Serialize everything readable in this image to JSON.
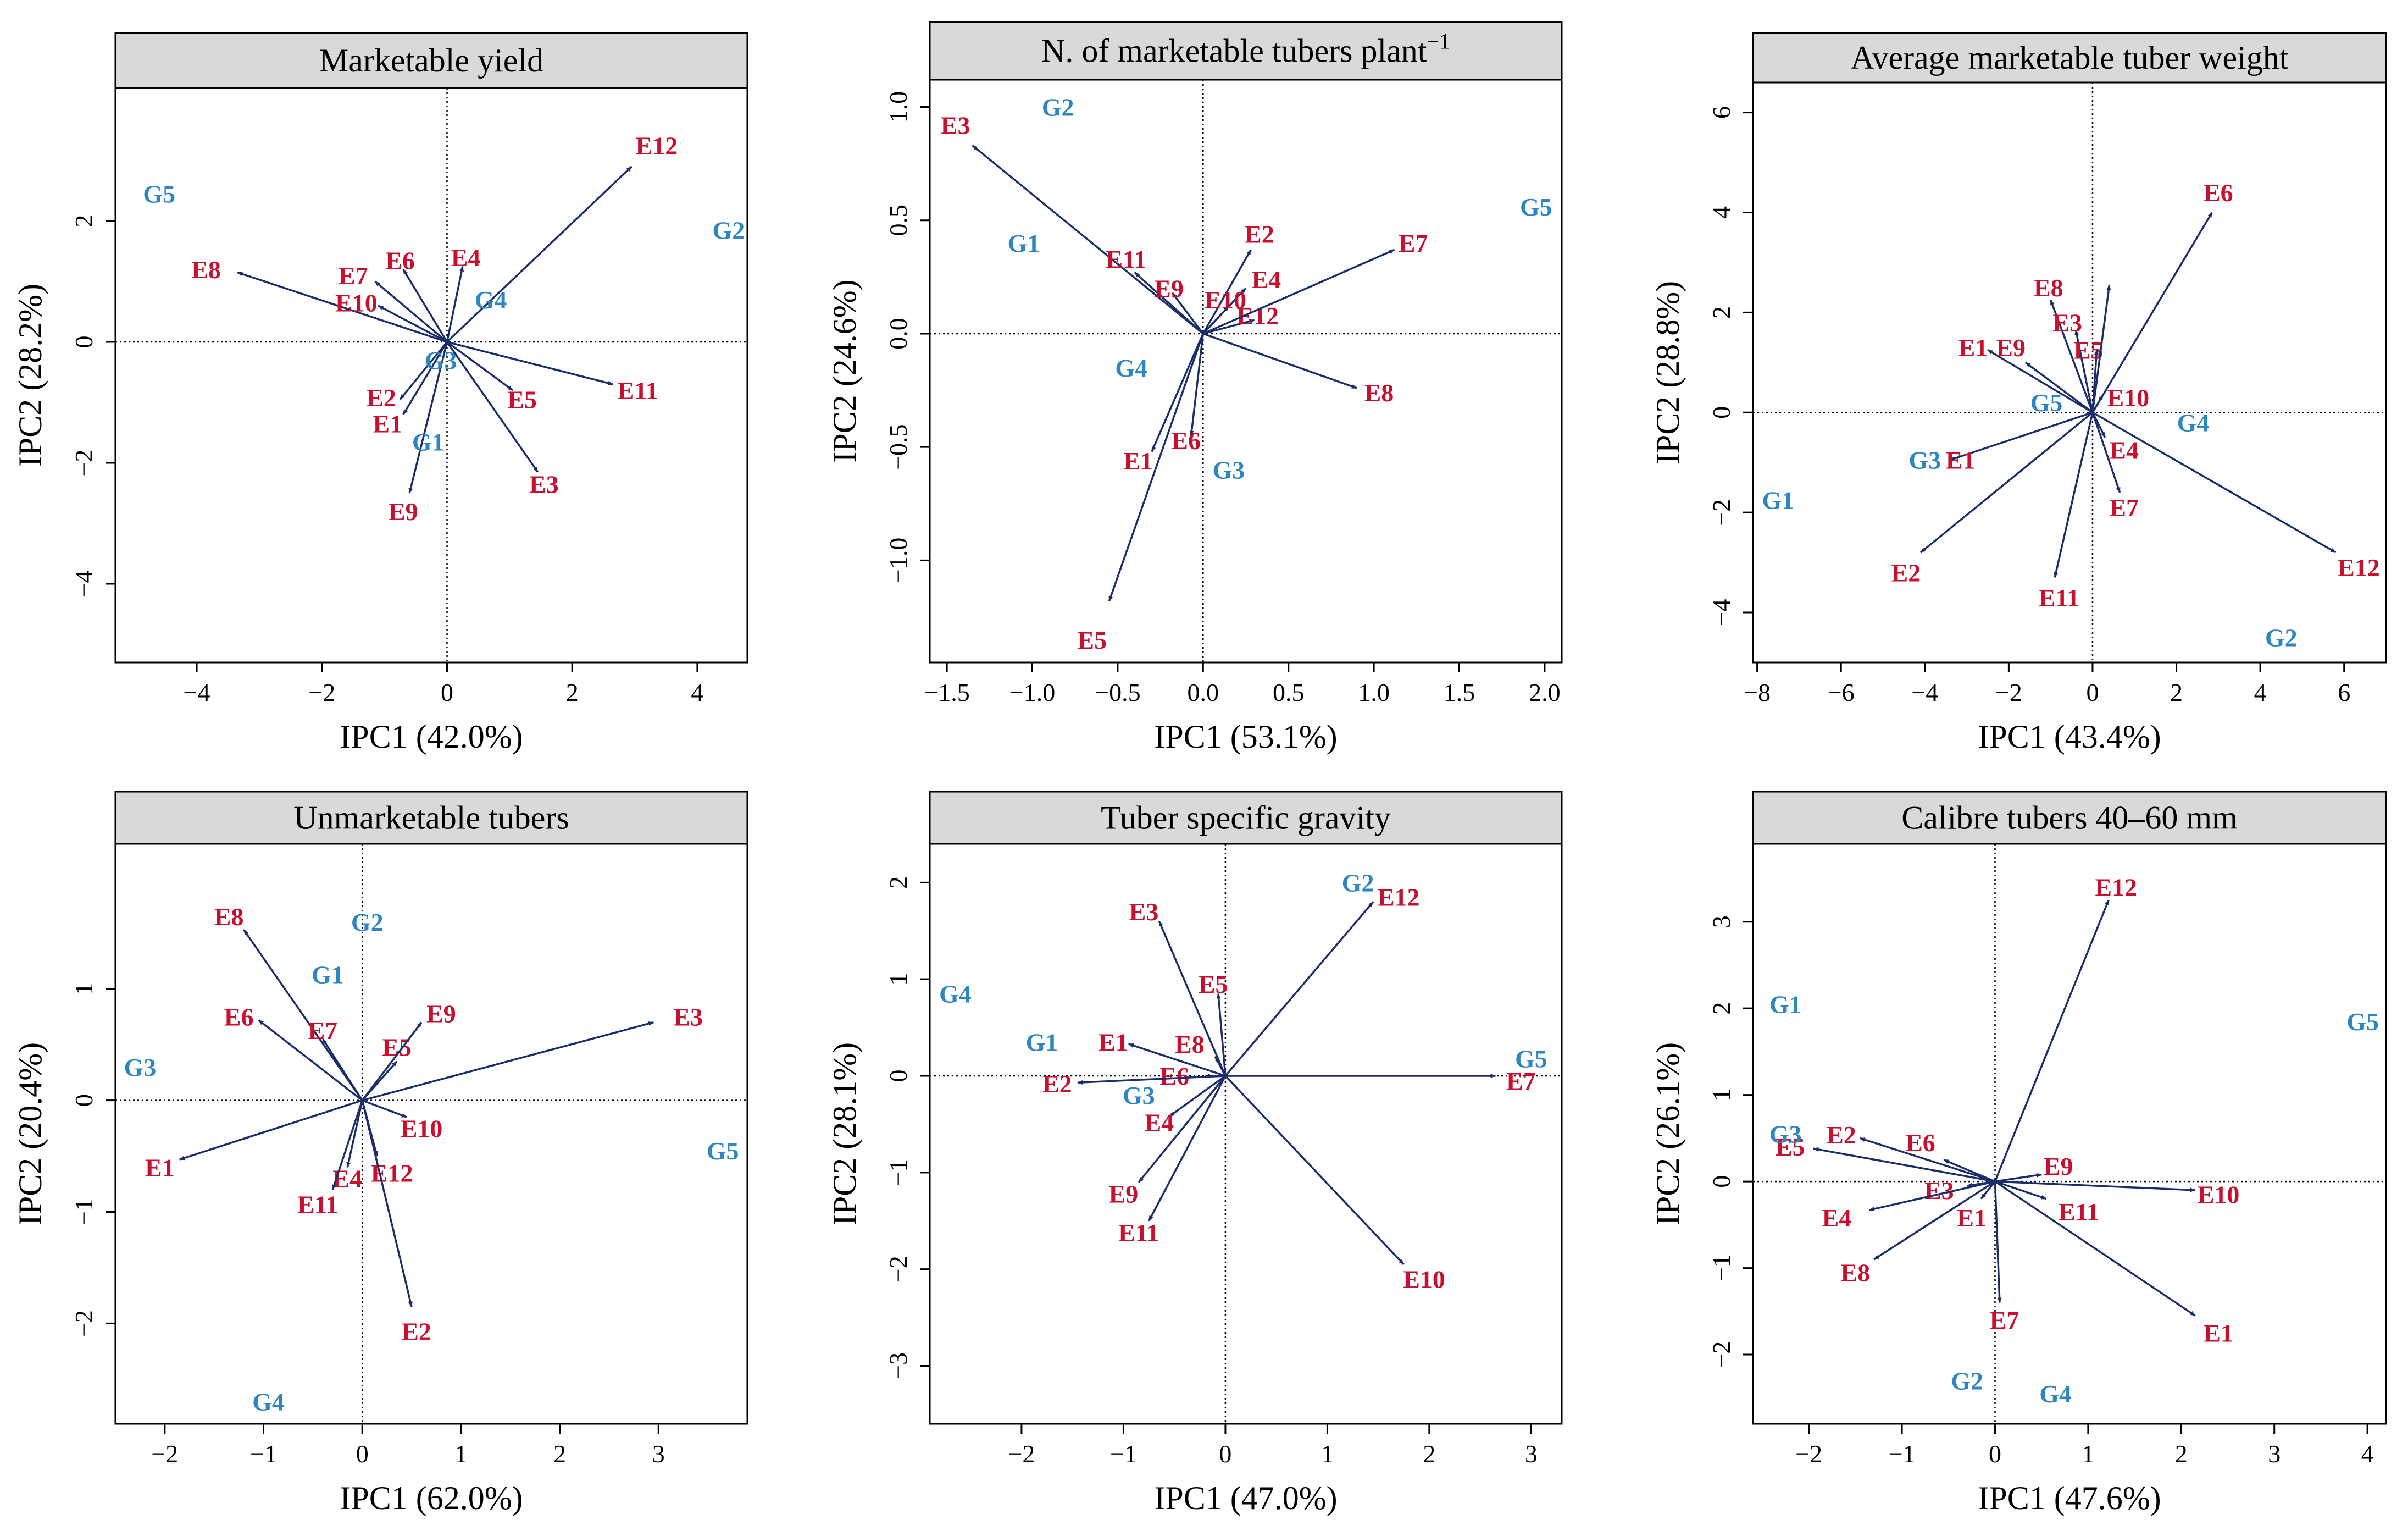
{
  "colors": {
    "arrow": "#1a2e6b",
    "env": "#c8102e",
    "gen": "#2e86c1",
    "header": "#d9d9d9",
    "frame": "#000000"
  },
  "chart_data": [
    {
      "type": "scatter",
      "title": "Marketable yield",
      "xlabel": "IPC1 (42.0%)",
      "ylabel": "IPC2 (28.2%)",
      "xlim": [
        -5.3,
        4.8
      ],
      "ylim": [
        -5.3,
        4.2
      ],
      "xticks": [
        -4,
        -2,
        0,
        2,
        4
      ],
      "yticks": [
        -4,
        -2,
        0,
        2
      ],
      "genotypes": [
        {
          "label": "G5",
          "x": -4.6,
          "y": 2.45
        },
        {
          "label": "G2",
          "x": 4.5,
          "y": 1.85
        },
        {
          "label": "G4",
          "x": 0.7,
          "y": 0.7
        },
        {
          "label": "G3",
          "x": -0.1,
          "y": -0.3
        },
        {
          "label": "G1",
          "x": -0.3,
          "y": -1.65
        }
      ],
      "environments": [
        {
          "label": "E12",
          "x": 2.95,
          "y": 2.9,
          "lx": 3.35,
          "ly": 3.25
        },
        {
          "label": "E8",
          "x": -3.35,
          "y": 1.15,
          "lx": -3.85,
          "ly": 1.2
        },
        {
          "label": "E7",
          "x": -1.15,
          "y": 1.0,
          "lx": -1.5,
          "ly": 1.1
        },
        {
          "label": "E6",
          "x": -0.7,
          "y": 1.2,
          "lx": -0.75,
          "ly": 1.35
        },
        {
          "label": "E4",
          "x": 0.25,
          "y": 1.25,
          "lx": 0.3,
          "ly": 1.4
        },
        {
          "label": "E10",
          "x": -1.1,
          "y": 0.6,
          "lx": -1.45,
          "ly": 0.65
        },
        {
          "label": "E11",
          "x": 2.65,
          "y": -0.7,
          "lx": 3.05,
          "ly": -0.8
        },
        {
          "label": "E5",
          "x": 1.05,
          "y": -0.8,
          "lx": 1.2,
          "ly": -0.95
        },
        {
          "label": "E2",
          "x": -0.75,
          "y": -0.95,
          "lx": -1.05,
          "ly": -0.92
        },
        {
          "label": "E1",
          "x": -0.7,
          "y": -1.2,
          "lx": -0.95,
          "ly": -1.35
        },
        {
          "label": "E3",
          "x": 1.45,
          "y": -2.15,
          "lx": 1.55,
          "ly": -2.35
        },
        {
          "label": "E9",
          "x": -0.6,
          "y": -2.5,
          "lx": -0.7,
          "ly": -2.8
        }
      ]
    },
    {
      "type": "scatter",
      "title": "N. of marketable tubers plant",
      "title_sup": "−1",
      "xlabel": "IPC1 (53.1%)",
      "ylabel": "IPC2 (24.6%)",
      "xlim": [
        -1.6,
        2.1
      ],
      "ylim": [
        -1.45,
        1.12
      ],
      "xticks": [
        -1.5,
        -1.0,
        -0.5,
        0.0,
        0.5,
        1.0,
        1.5,
        2.0
      ],
      "yticks": [
        -1.0,
        -0.5,
        0.0,
        0.5,
        1.0
      ],
      "genotypes": [
        {
          "label": "G2",
          "x": -0.85,
          "y": 1.0
        },
        {
          "label": "G5",
          "x": 1.95,
          "y": 0.56
        },
        {
          "label": "G1",
          "x": -1.05,
          "y": 0.4
        },
        {
          "label": "G4",
          "x": -0.42,
          "y": -0.15
        },
        {
          "label": "G3",
          "x": 0.15,
          "y": -0.6
        }
      ],
      "environments": [
        {
          "label": "E3",
          "x": -1.35,
          "y": 0.83,
          "lx": -1.45,
          "ly": 0.92
        },
        {
          "label": "E11",
          "x": -0.4,
          "y": 0.27,
          "lx": -0.45,
          "ly": 0.33
        },
        {
          "label": "E9",
          "x": -0.18,
          "y": 0.18,
          "lx": -0.2,
          "ly": 0.2
        },
        {
          "label": "E2",
          "x": 0.28,
          "y": 0.37,
          "lx": 0.33,
          "ly": 0.44
        },
        {
          "label": "E4",
          "x": 0.25,
          "y": 0.2,
          "lx": 0.37,
          "ly": 0.24
        },
        {
          "label": "E10",
          "x": 0.15,
          "y": 0.12,
          "lx": 0.13,
          "ly": 0.15
        },
        {
          "label": "E12",
          "x": 0.3,
          "y": 0.06,
          "lx": 0.32,
          "ly": 0.08
        },
        {
          "label": "E7",
          "x": 1.12,
          "y": 0.37,
          "lx": 1.23,
          "ly": 0.4
        },
        {
          "label": "E8",
          "x": 0.9,
          "y": -0.24,
          "lx": 1.03,
          "ly": -0.26
        },
        {
          "label": "E1",
          "x": -0.3,
          "y": -0.52,
          "lx": -0.38,
          "ly": -0.56
        },
        {
          "label": "E6",
          "x": -0.07,
          "y": -0.45,
          "lx": -0.1,
          "ly": -0.47
        },
        {
          "label": "E5",
          "x": -0.55,
          "y": -1.18,
          "lx": -0.65,
          "ly": -1.35
        }
      ]
    },
    {
      "type": "scatter",
      "title": "Average marketable tuber weight",
      "xlabel": "IPC1 (43.4%)",
      "ylabel": "IPC2 (28.8%)",
      "xlim": [
        -8.1,
        7.0
      ],
      "ylim": [
        -5.0,
        6.6
      ],
      "xticks": [
        -8,
        -6,
        -4,
        -2,
        0,
        2,
        4,
        6
      ],
      "yticks": [
        -4,
        -2,
        0,
        2,
        4,
        6
      ],
      "genotypes": [
        {
          "label": "G1",
          "x": -7.5,
          "y": -1.75
        },
        {
          "label": "G3",
          "x": -4.0,
          "y": -0.95
        },
        {
          "label": "G5",
          "x": -1.1,
          "y": 0.2
        },
        {
          "label": "G4",
          "x": 2.4,
          "y": -0.2
        },
        {
          "label": "G2",
          "x": 4.5,
          "y": -4.5
        }
      ],
      "environments": [
        {
          "label": "E6",
          "x": 2.85,
          "y": 4.0,
          "lx": 3.0,
          "ly": 4.4
        },
        {
          "label": "E8",
          "x": -1.0,
          "y": 2.25,
          "lx": -1.05,
          "ly": 2.5
        },
        {
          "label": "E3",
          "x": -0.4,
          "y": 1.65,
          "lx": -0.6,
          "ly": 1.8
        },
        {
          "label": "E5",
          "x": 0.1,
          "y": 1.25,
          "lx": -0.1,
          "ly": 1.25
        },
        {
          "label": "E1",
          "x": -2.5,
          "y": 1.25,
          "lx": -2.85,
          "ly": 1.3
        },
        {
          "label": "E9",
          "x": -1.6,
          "y": 1.0,
          "lx": -1.95,
          "ly": 1.3
        },
        {
          "label": "E10",
          "x": 0.25,
          "y": 0.35,
          "lx": 0.85,
          "ly": 0.3
        },
        {
          "label": "E4",
          "x": 0.3,
          "y": -0.5,
          "lx": 0.75,
          "ly": -0.75
        },
        {
          "label": "E7",
          "x": 0.65,
          "y": -1.6,
          "lx": 0.75,
          "ly": -1.9
        },
        {
          "label": "E1",
          "x": -3.4,
          "y": -0.95,
          "lx": -3.15,
          "ly": -0.95
        },
        {
          "label": "E2",
          "x": -4.1,
          "y": -2.8,
          "lx": -4.45,
          "ly": -3.2
        },
        {
          "label": "E11",
          "x": -0.9,
          "y": -3.3,
          "lx": -0.8,
          "ly": -3.7
        },
        {
          "label": "E12",
          "x": 5.8,
          "y": -2.8,
          "lx": 6.35,
          "ly": -3.1
        },
        {
          "label": "",
          "x": 0.4,
          "y": 2.55,
          "lx": 0,
          "ly": 0
        }
      ]
    },
    {
      "type": "scatter",
      "title": "Unmarketable tubers",
      "xlabel": "IPC1 (62.0%)",
      "ylabel": "IPC2 (20.4%)",
      "xlim": [
        -2.5,
        3.9
      ],
      "ylim": [
        -2.9,
        2.3
      ],
      "xticks": [
        -2,
        -1,
        0,
        1,
        2,
        3
      ],
      "yticks": [
        -2,
        -1,
        0,
        1
      ],
      "genotypes": [
        {
          "label": "G2",
          "x": 0.05,
          "y": 1.6
        },
        {
          "label": "G1",
          "x": -0.35,
          "y": 1.13
        },
        {
          "label": "G3",
          "x": -2.25,
          "y": 0.3
        },
        {
          "label": "G5",
          "x": 3.65,
          "y": -0.45
        },
        {
          "label": "G4",
          "x": -0.95,
          "y": -2.7
        }
      ],
      "environments": [
        {
          "label": "E8",
          "x": -1.2,
          "y": 1.53,
          "lx": -1.35,
          "ly": 1.65
        },
        {
          "label": "E6",
          "x": -1.05,
          "y": 0.72,
          "lx": -1.25,
          "ly": 0.75
        },
        {
          "label": "E7",
          "x": -0.4,
          "y": 0.55,
          "lx": -0.4,
          "ly": 0.63
        },
        {
          "label": "E5",
          "x": 0.35,
          "y": 0.35,
          "lx": 0.35,
          "ly": 0.48
        },
        {
          "label": "E9",
          "x": 0.6,
          "y": 0.7,
          "lx": 0.8,
          "ly": 0.78
        },
        {
          "label": "E3",
          "x": 2.95,
          "y": 0.7,
          "lx": 3.3,
          "ly": 0.75
        },
        {
          "label": "E10",
          "x": 0.45,
          "y": -0.15,
          "lx": 0.6,
          "ly": -0.25
        },
        {
          "label": "E1",
          "x": -1.85,
          "y": -0.53,
          "lx": -2.05,
          "ly": -0.6
        },
        {
          "label": "E4",
          "x": -0.15,
          "y": -0.6,
          "lx": -0.15,
          "ly": -0.7
        },
        {
          "label": "E12",
          "x": 0.15,
          "y": -0.5,
          "lx": 0.3,
          "ly": -0.65
        },
        {
          "label": "E11",
          "x": -0.3,
          "y": -0.8,
          "lx": -0.45,
          "ly": -0.93
        },
        {
          "label": "E2",
          "x": 0.5,
          "y": -1.85,
          "lx": 0.55,
          "ly": -2.07
        }
      ]
    },
    {
      "type": "scatter",
      "title": "Tuber specific gravity",
      "xlabel": "IPC1 (47.0%)",
      "ylabel": "IPC2 (28.1%)",
      "xlim": [
        -2.9,
        3.3
      ],
      "ylim": [
        -3.6,
        2.4
      ],
      "xticks": [
        -2,
        -1,
        0,
        1,
        2,
        3
      ],
      "yticks": [
        -3,
        -2,
        -1,
        0,
        1,
        2
      ],
      "genotypes": [
        {
          "label": "G2",
          "x": 1.3,
          "y": 2.0
        },
        {
          "label": "G4",
          "x": -2.65,
          "y": 0.85
        },
        {
          "label": "G1",
          "x": -1.8,
          "y": 0.35
        },
        {
          "label": "G5",
          "x": 3.0,
          "y": 0.18
        },
        {
          "label": "G3",
          "x": -0.85,
          "y": -0.2
        }
      ],
      "environments": [
        {
          "label": "E12",
          "x": 1.45,
          "y": 1.8,
          "lx": 1.7,
          "ly": 1.85
        },
        {
          "label": "E3",
          "x": -0.65,
          "y": 1.6,
          "lx": -0.8,
          "ly": 1.7
        },
        {
          "label": "E5",
          "x": -0.07,
          "y": 0.85,
          "lx": -0.12,
          "ly": 0.95
        },
        {
          "label": "E1",
          "x": -0.95,
          "y": 0.33,
          "lx": -1.1,
          "ly": 0.35
        },
        {
          "label": "E8",
          "x": -0.1,
          "y": 0.2,
          "lx": -0.35,
          "ly": 0.33
        },
        {
          "label": "E6",
          "x": -0.2,
          "y": 0.0,
          "lx": -0.5,
          "ly": 0.0
        },
        {
          "label": "E2",
          "x": -1.45,
          "y": -0.07,
          "lx": -1.65,
          "ly": -0.08
        },
        {
          "label": "E7",
          "x": 2.65,
          "y": 0.0,
          "lx": 2.9,
          "ly": -0.05
        },
        {
          "label": "E4",
          "x": -0.55,
          "y": -0.42,
          "lx": -0.65,
          "ly": -0.48
        },
        {
          "label": "E9",
          "x": -0.85,
          "y": -1.1,
          "lx": -1.0,
          "ly": -1.22
        },
        {
          "label": "E11",
          "x": -0.75,
          "y": -1.5,
          "lx": -0.85,
          "ly": -1.62
        },
        {
          "label": "E10",
          "x": 1.75,
          "y": -1.95,
          "lx": 1.95,
          "ly": -2.1
        }
      ]
    },
    {
      "type": "scatter",
      "title": "Calibre tubers 40–60 mm",
      "xlabel": "IPC1 (47.6%)",
      "ylabel": "IPC2 (26.1%)",
      "xlim": [
        -2.6,
        4.2
      ],
      "ylim": [
        -2.8,
        3.9
      ],
      "xticks": [
        -2,
        -1,
        0,
        1,
        2,
        3,
        4
      ],
      "yticks": [
        -2,
        -1,
        0,
        1,
        2,
        3
      ],
      "genotypes": [
        {
          "label": "G1",
          "x": -2.25,
          "y": 2.05
        },
        {
          "label": "G5",
          "x": 3.95,
          "y": 1.85
        },
        {
          "label": "G3",
          "x": -2.25,
          "y": 0.55
        },
        {
          "label": "G2",
          "x": -0.3,
          "y": -2.3
        },
        {
          "label": "G4",
          "x": 0.65,
          "y": -2.45
        }
      ],
      "environments": [
        {
          "label": "E12",
          "x": 1.22,
          "y": 3.25,
          "lx": 1.3,
          "ly": 3.4
        },
        {
          "label": "E5",
          "x": -1.95,
          "y": 0.38,
          "lx": -2.2,
          "ly": 0.4
        },
        {
          "label": "E2",
          "x": -1.45,
          "y": 0.5,
          "lx": -1.65,
          "ly": 0.54
        },
        {
          "label": "E6",
          "x": -0.55,
          "y": 0.25,
          "lx": -0.8,
          "ly": 0.45
        },
        {
          "label": "E9",
          "x": 0.5,
          "y": 0.08,
          "lx": 0.68,
          "ly": 0.18
        },
        {
          "label": "E10",
          "x": 2.15,
          "y": -0.1,
          "lx": 2.4,
          "ly": -0.15
        },
        {
          "label": "E3",
          "x": -0.3,
          "y": -0.05,
          "lx": -0.6,
          "ly": -0.1
        },
        {
          "label": "E11",
          "x": 0.55,
          "y": -0.2,
          "lx": 0.9,
          "ly": -0.35
        },
        {
          "label": "E1",
          "x": -0.15,
          "y": -0.2,
          "lx": -0.25,
          "ly": -0.42
        },
        {
          "label": "E4",
          "x": -1.35,
          "y": -0.33,
          "lx": -1.7,
          "ly": -0.42
        },
        {
          "label": "E8",
          "x": -1.3,
          "y": -0.9,
          "lx": -1.5,
          "ly": -1.05
        },
        {
          "label": "E7",
          "x": 0.05,
          "y": -1.4,
          "lx": 0.1,
          "ly": -1.6
        },
        {
          "label": "E1",
          "x": 2.15,
          "y": -1.55,
          "lx": 2.4,
          "ly": -1.75
        }
      ]
    }
  ]
}
